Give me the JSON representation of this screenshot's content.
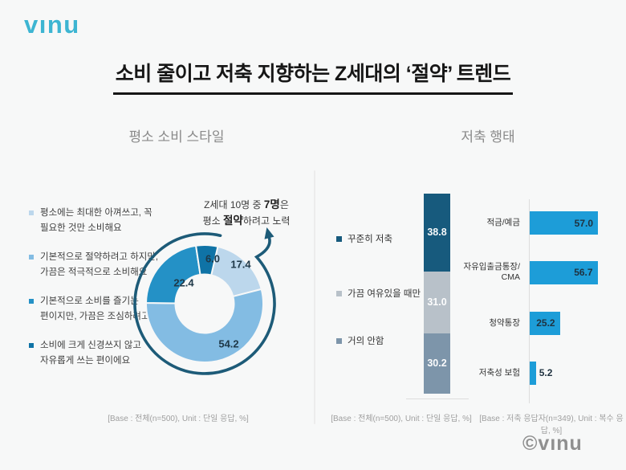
{
  "brand": {
    "logo_text": "vınu",
    "logo_color": "#3db5d2",
    "copyright_text": "©vınu"
  },
  "title": "소비 줄이고 저축 지향하는 Z세대의 ‘절약’ 트렌드",
  "sections": {
    "consumption": {
      "header": "평소 소비 스타일",
      "footnote": "[Base : 전체(n=500), Unit : 단일 응답, %]"
    },
    "saving_frequency": {
      "footnote": "[Base : 전체(n=500), Unit : 단일 응답, %]"
    },
    "saving_products": {
      "header": "저축 행태",
      "footnote": "[Base : 저축 응답자(n=349), Unit : 복수 응답, %]"
    }
  },
  "annotation": {
    "lines": [
      [
        {
          "text": "Z세대 10명 중 "
        },
        {
          "text": "7명",
          "bold": true
        },
        {
          "text": "은"
        }
      ],
      [
        {
          "text": "평소 "
        },
        {
          "text": "절약",
          "bold": true
        },
        {
          "text": "하려고 노력"
        }
      ]
    ]
  },
  "chart_data": [
    {
      "type": "pie",
      "variant": "donut",
      "title": "평소 소비 스타일",
      "unit": "%",
      "labels": [
        "평소에는 최대한 아껴쓰고, 꼭 필요한 것만 소비해요",
        "기본적으로 절약하려고 하지만, 가끔은 적극적으로 소비해요",
        "기본적으로 소비를 즐기는 편이지만, 가끔은 조심하려고 해요",
        "소비에 크게 신경쓰지 않고 자유롭게 쓰는 편이에요"
      ],
      "legend_lines": [
        "평소에는 최대한 아껴쓰고, 꼭\n필요한 것만 소비해요",
        "기본적으로 절약하려고 하지만,\n가끔은 적극적으로 소비해요",
        "기본적으로 소비를 즐기는\n편이지만, 가끔은 조심하려고 해요",
        "소비에 크게 신경쓰지 않고\n자유롭게 쓰는 편이에요"
      ],
      "values": [
        17.4,
        54.2,
        22.4,
        6.0
      ],
      "colors": [
        "#bcd7ec",
        "#83bce3",
        "#2491c6",
        "#0f73a6"
      ],
      "arrow_color": "#1d5b78",
      "legend_position": "left"
    },
    {
      "type": "bar",
      "variant": "stacked-vertical",
      "title": "저축 행태 - 저축 빈도",
      "unit": "%",
      "categories": [
        "꾸준히 저축",
        "가끔 여유있을 때만",
        "거의 안함"
      ],
      "values": [
        38.8,
        31.0,
        30.2
      ],
      "colors": [
        "#175a7d",
        "#b8c1c9",
        "#7d95aa"
      ],
      "ylim": [
        0,
        100
      ],
      "legend_position": "left"
    },
    {
      "type": "bar",
      "variant": "horizontal",
      "title": "저축 행태 - 저축 상품",
      "unit": "%",
      "categories": [
        "적금/예금",
        "자유입출금통장/CMA",
        "청약통장",
        "저축성 보험"
      ],
      "display_labels": [
        "적금/예금",
        "자유입출금통장/\nCMA",
        "청약통장",
        "저축성 보험"
      ],
      "values": [
        57.0,
        56.7,
        25.2,
        5.2
      ],
      "bar_color": "#1d9dd8",
      "value_color": "#1f3240",
      "xlim": [
        0,
        60
      ]
    }
  ]
}
